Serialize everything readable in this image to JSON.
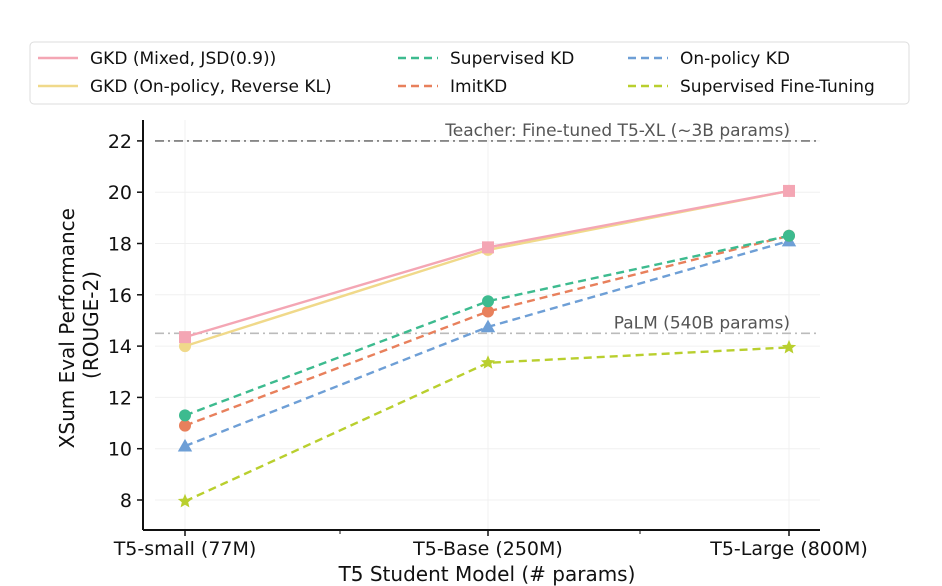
{
  "chart_data": {
    "type": "line",
    "categories": [
      "T5-small (77M)",
      "T5-Base (250M)",
      "T5-Large (800M)"
    ],
    "xlabel": "T5 Student Model (# params)",
    "ylabel": [
      "XSum Eval Performance",
      "(ROUGE-2)"
    ],
    "ylim": [
      7.2,
      23
    ],
    "yticks": [
      8,
      10,
      12,
      14,
      16,
      18,
      20,
      22
    ],
    "grid": true,
    "legend_position": "top",
    "series": [
      {
        "name": "GKD (Mixed, JSD(0.9))",
        "values": [
          14.35,
          17.85,
          20.05
        ],
        "color": "#f4a6b4",
        "dash": "solid",
        "marker": "square"
      },
      {
        "name": "GKD (On-policy, Reverse KL)",
        "values": [
          14.0,
          17.75,
          20.05
        ],
        "color": "#f0d98a",
        "dash": "solid",
        "marker": "circle"
      },
      {
        "name": "Supervised KD",
        "values": [
          11.3,
          15.75,
          18.3
        ],
        "color": "#3dbb8f",
        "dash": "dashed",
        "marker": "circle"
      },
      {
        "name": "ImitKD",
        "values": [
          10.9,
          15.35,
          18.3
        ],
        "color": "#e8805c",
        "dash": "dashed",
        "marker": "circle"
      },
      {
        "name": "On-policy KD",
        "values": [
          10.1,
          14.75,
          18.1
        ],
        "color": "#6e9fd6",
        "dash": "dashed",
        "marker": "triangle"
      },
      {
        "name": "Supervised Fine-Tuning",
        "values": [
          7.95,
          13.35,
          13.95
        ],
        "color": "#b9cf2e",
        "dash": "dashed",
        "marker": "star"
      }
    ],
    "reference_lines": [
      {
        "label": "Teacher: Fine-tuned T5-XL (~3B params)",
        "value": 22,
        "color": "#777777"
      },
      {
        "label": "PaLM (540B params)",
        "value": 14.5,
        "color": "#bbbbbb"
      }
    ]
  }
}
